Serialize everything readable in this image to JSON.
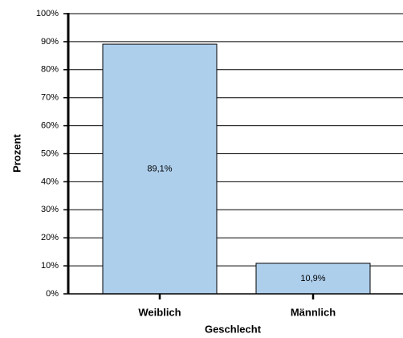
{
  "chart_data": {
    "type": "bar",
    "x_label": "Geschlecht",
    "y_label": "Prozent",
    "categories": [
      "Weiblich",
      "Männlich"
    ],
    "values": [
      89.1,
      10.9
    ],
    "value_labels": [
      "89,1%",
      "10,9%"
    ],
    "color": "#aecfec",
    "ylim": [
      0,
      100
    ],
    "yticks": [
      {
        "value": 0,
        "label": "0%"
      },
      {
        "value": 10,
        "label": "10%"
      },
      {
        "value": 20,
        "label": "20%"
      },
      {
        "value": 30,
        "label": "30%"
      },
      {
        "value": 40,
        "label": "40%"
      },
      {
        "value": 50,
        "label": "50%"
      },
      {
        "value": 60,
        "label": "60%"
      },
      {
        "value": 70,
        "label": "70%"
      },
      {
        "value": 80,
        "label": "80%"
      },
      {
        "value": 90,
        "label": "90%"
      },
      {
        "value": 100,
        "label": "100%"
      }
    ],
    "grid": true
  }
}
